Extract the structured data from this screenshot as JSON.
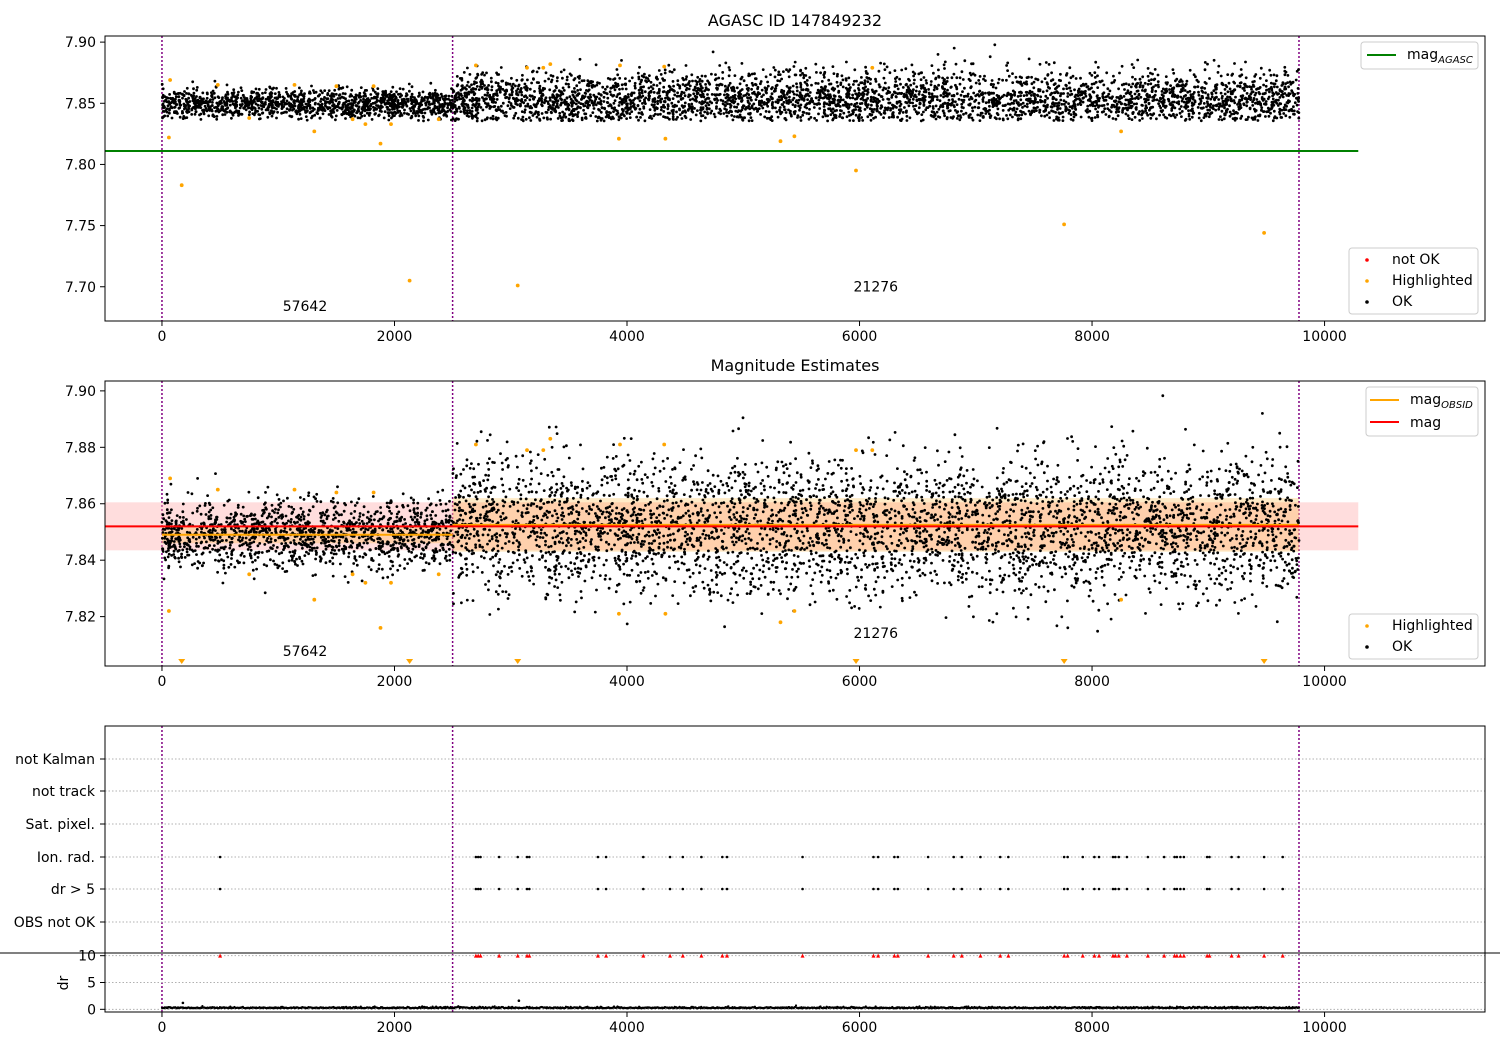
{
  "colors": {
    "ok": "#000000",
    "highlighted": "#ffa500",
    "not_ok": "#ff0000",
    "mag_agasc_line": "#008000",
    "mag_obsid_line": "#ffa500",
    "mag_line": "#ff0000",
    "band_fill": "#ffb3b3",
    "vline": "#800080",
    "grid": "#b0b0b0"
  },
  "chart_data": [
    {
      "type": "scatter",
      "title": "AGASC ID 147849232",
      "xlim": [
        -490,
        11380
      ],
      "ylim": [
        7.672,
        7.905
      ],
      "x_ticks": [
        0,
        2000,
        4000,
        6000,
        8000,
        10000
      ],
      "x_tick_labels": [
        "0",
        "2000",
        "4000",
        "6000",
        "8000",
        "10000"
      ],
      "y_ticks": [
        7.7,
        7.75,
        7.8,
        7.85,
        7.9
      ],
      "y_tick_labels": [
        "7.70",
        "7.75",
        "7.80",
        "7.85",
        "7.90"
      ],
      "obs_boundaries": [
        0,
        2500,
        9780
      ],
      "obs_annotations": [
        {
          "text": "57642",
          "x": 1230,
          "y": 7.68
        },
        {
          "text": "21276",
          "x": 6140,
          "y": 7.696
        }
      ],
      "mag_agasc": 7.811,
      "mag_agasc_xrange": [
        -490,
        10290
      ],
      "ok_segments": [
        {
          "x_start": 0,
          "x_end": 2500,
          "mean": 7.849,
          "spread": 0.011
        },
        {
          "x_start": 2500,
          "x_end": 9780,
          "mean": 7.852,
          "spread": 0.022
        }
      ],
      "highlighted_points": [
        [
          60,
          7.822
        ],
        [
          70,
          7.869
        ],
        [
          170,
          7.783
        ],
        [
          480,
          7.865
        ],
        [
          750,
          7.838
        ],
        [
          1140,
          7.865
        ],
        [
          1310,
          7.827
        ],
        [
          1500,
          7.864
        ],
        [
          1640,
          7.837
        ],
        [
          1750,
          7.833
        ],
        [
          1820,
          7.864
        ],
        [
          1880,
          7.817
        ],
        [
          1970,
          7.833
        ],
        [
          2130,
          7.705
        ],
        [
          2380,
          7.837
        ],
        [
          2700,
          7.881
        ],
        [
          3060,
          7.701
        ],
        [
          3140,
          7.879
        ],
        [
          3280,
          7.879
        ],
        [
          3340,
          7.882
        ],
        [
          3930,
          7.821
        ],
        [
          3940,
          7.881
        ],
        [
          4320,
          7.88
        ],
        [
          4330,
          7.821
        ],
        [
          5320,
          7.819
        ],
        [
          5440,
          7.823
        ],
        [
          5970,
          7.795
        ],
        [
          6110,
          7.879
        ],
        [
          7760,
          7.751
        ],
        [
          8250,
          7.827
        ],
        [
          9480,
          7.744
        ]
      ],
      "legend_top": [
        {
          "label": "mag",
          "sub": "AGASC",
          "color": "#008000"
        }
      ],
      "legend_bottom": [
        {
          "label": "not OK",
          "color": "#ff0000"
        },
        {
          "label": "Highlighted",
          "color": "#ffa500"
        },
        {
          "label": "OK",
          "color": "#000000"
        }
      ]
    },
    {
      "type": "scatter",
      "title": "Magnitude Estimates",
      "xlim": [
        -490,
        11380
      ],
      "ylim": [
        7.8025,
        7.9035
      ],
      "x_ticks": [
        0,
        2000,
        4000,
        6000,
        8000,
        10000
      ],
      "x_tick_labels": [
        "0",
        "2000",
        "4000",
        "6000",
        "8000",
        "10000"
      ],
      "y_ticks": [
        7.82,
        7.84,
        7.86,
        7.88,
        7.9
      ],
      "y_tick_labels": [
        "7.82",
        "7.84",
        "7.86",
        "7.88",
        "7.90"
      ],
      "obs_boundaries": [
        0,
        2500,
        9780
      ],
      "obs_annotations": [
        {
          "text": "57642",
          "x": 1230,
          "y": 7.806
        },
        {
          "text": "21276",
          "x": 6140,
          "y": 7.8125
        }
      ],
      "mag": 7.852,
      "mag_band": [
        7.8435,
        7.8605
      ],
      "mag_xrange": [
        -490,
        10290
      ],
      "mag_obsid_segments": [
        {
          "x_start": 0,
          "x_end": 2500,
          "value": 7.849,
          "band": [
            7.846,
            7.852
          ]
        },
        {
          "x_start": 2500,
          "x_end": 9780,
          "value": 7.8525,
          "band": [
            7.843,
            7.862
          ]
        }
      ],
      "ok_segments": [
        {
          "x_start": 0,
          "x_end": 2500,
          "mean": 7.849,
          "spread": 0.011
        },
        {
          "x_start": 2500,
          "x_end": 9780,
          "mean": 7.852,
          "spread": 0.022
        }
      ],
      "highlighted_points": [
        [
          60,
          7.822
        ],
        [
          70,
          7.869
        ],
        [
          480,
          7.865
        ],
        [
          750,
          7.835
        ],
        [
          1140,
          7.865
        ],
        [
          1310,
          7.826
        ],
        [
          1500,
          7.864
        ],
        [
          1640,
          7.835
        ],
        [
          1750,
          7.832
        ],
        [
          1820,
          7.864
        ],
        [
          1880,
          7.816
        ],
        [
          1970,
          7.832
        ],
        [
          2380,
          7.835
        ],
        [
          2700,
          7.881
        ],
        [
          3140,
          7.879
        ],
        [
          3280,
          7.879
        ],
        [
          3340,
          7.883
        ],
        [
          3930,
          7.821
        ],
        [
          3940,
          7.881
        ],
        [
          4320,
          7.881
        ],
        [
          4330,
          7.821
        ],
        [
          5320,
          7.818
        ],
        [
          5440,
          7.822
        ],
        [
          5970,
          7.879
        ],
        [
          6110,
          7.879
        ],
        [
          8250,
          7.826
        ]
      ],
      "off_axis_markers_x": [
        170,
        2130,
        3060,
        5970,
        7760,
        9480
      ],
      "legend_top": [
        {
          "label": "mag",
          "sub": "OBSID",
          "color": "#ffa500"
        },
        {
          "label": "mag",
          "sub": "",
          "color": "#ff0000"
        }
      ],
      "legend_bottom": [
        {
          "label": "Highlighted",
          "color": "#ffa500"
        },
        {
          "label": "OK",
          "color": "#000000"
        }
      ]
    },
    {
      "type": "scatter",
      "xlim": [
        -490,
        11380
      ],
      "flag_labels": [
        "not Kalman",
        "not track",
        "Sat. pixel.",
        "Ion. rad.",
        "dr > 5",
        "OBS not OK"
      ],
      "flag_events_x": [
        500,
        2700,
        2720,
        2740,
        2900,
        3060,
        3140,
        3160,
        3750,
        3820,
        4140,
        4370,
        4480,
        4640,
        4820,
        4860,
        5510,
        6120,
        6160,
        6300,
        6330,
        6590,
        6810,
        6880,
        7040,
        7210,
        7280,
        7760,
        7790,
        7920,
        8020,
        8060,
        8180,
        8200,
        8230,
        8300,
        8480,
        8620,
        8710,
        8730,
        8760,
        8790,
        8990,
        9010,
        9200,
        9260,
        9480,
        9640
      ],
      "dr_ylim": [
        -0.5,
        10.5
      ],
      "dr_y_ticks": [
        0,
        5,
        10
      ],
      "dr_y_tick_labels": [
        "0",
        "5",
        "10"
      ],
      "dr_ylabel": "dr",
      "dr_baseline": 0.2,
      "dr_outliers": [
        [
          180,
          1.2
        ],
        [
          3070,
          1.6
        ]
      ],
      "x_ticks": [
        0,
        2000,
        4000,
        6000,
        8000,
        10000
      ],
      "x_tick_labels": [
        "0",
        "2000",
        "4000",
        "6000",
        "8000",
        "10000"
      ],
      "obs_boundaries": [
        0,
        2500,
        9780
      ]
    }
  ]
}
